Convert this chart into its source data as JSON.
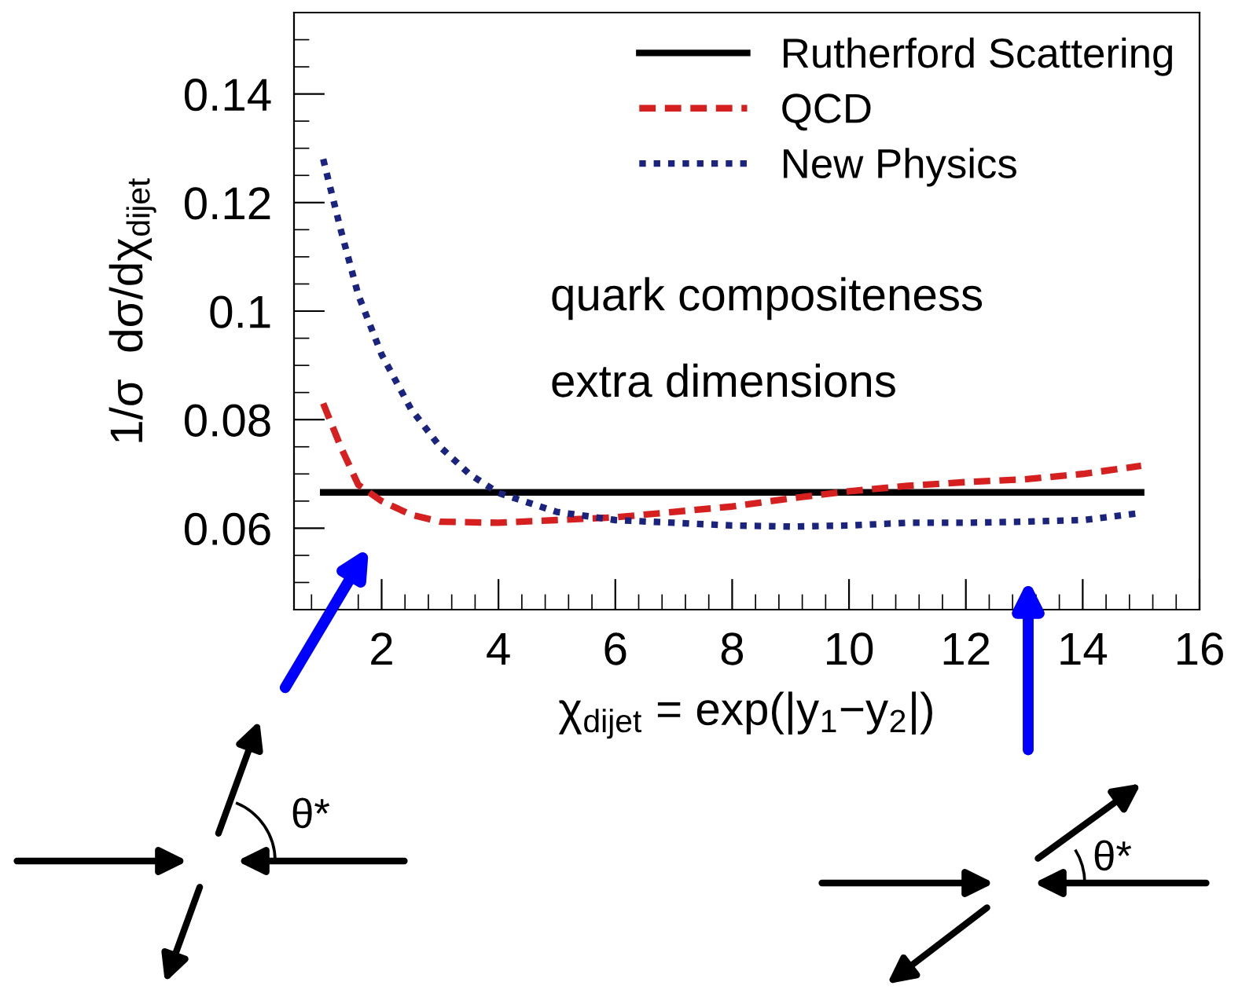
{
  "chart_data": {
    "type": "line",
    "xlabel": "χ$_{dijet}$ = exp(|y$_{1}$−y$_{2}$|)",
    "ylabel": "1/σ  dσ/dχ$_{dijet}$",
    "xlim": [
      0.5,
      16
    ],
    "xticks": [
      2,
      4,
      6,
      8,
      10,
      12,
      14,
      16
    ],
    "ylim": [
      0.045,
      0.155
    ],
    "yticks": [
      0.06,
      0.08,
      0.1,
      0.12,
      0.14
    ],
    "grid": false,
    "legend": "top right",
    "series": [
      {
        "name": "Rutherford Scattering",
        "color": "#000000",
        "line_style": "solid",
        "x": [
          1,
          15
        ],
        "values": [
          0.0666,
          0.0666
        ]
      },
      {
        "name": "QCD",
        "color": "#d62020",
        "line_style": "dashed",
        "x": [
          1,
          1.3,
          1.6,
          2,
          2.5,
          3,
          4,
          5,
          6,
          7,
          8,
          9,
          10,
          11,
          12,
          13,
          14,
          15
        ],
        "values": [
          0.083,
          0.075,
          0.068,
          0.065,
          0.0625,
          0.0612,
          0.061,
          0.0615,
          0.062,
          0.063,
          0.064,
          0.0655,
          0.0668,
          0.0678,
          0.0685,
          0.069,
          0.07,
          0.0715
        ]
      },
      {
        "name": "New Physics",
        "color": "#1a237e",
        "line_style": "dotted",
        "x": [
          1,
          1.3,
          1.6,
          2,
          2.5,
          3,
          3.5,
          4,
          5,
          6,
          7,
          8,
          9,
          10,
          11,
          12,
          13,
          14,
          15
        ],
        "values": [
          0.128,
          0.115,
          0.103,
          0.092,
          0.082,
          0.075,
          0.07,
          0.0665,
          0.063,
          0.0615,
          0.061,
          0.0605,
          0.0603,
          0.0605,
          0.061,
          0.061,
          0.0612,
          0.0615,
          0.0628
        ]
      }
    ],
    "annotations": [
      "quark compositeness",
      "extra dimensions",
      "θ*",
      "θ*"
    ]
  }
}
